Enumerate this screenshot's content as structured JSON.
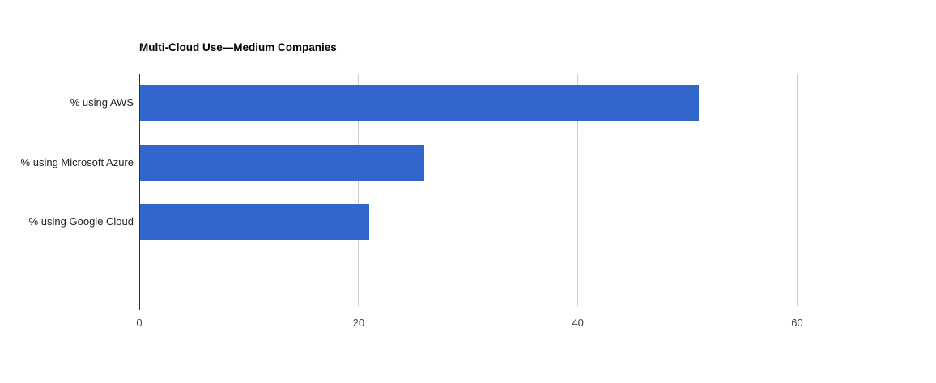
{
  "chart_data": {
    "type": "bar",
    "orientation": "horizontal",
    "title": "Multi-Cloud Use—Medium Companies",
    "categories": [
      "% using AWS",
      "% using Microsoft Azure",
      "% using Google Cloud"
    ],
    "values": [
      51,
      26,
      21
    ],
    "x_ticks": [
      0,
      20,
      40,
      60
    ],
    "xlim": [
      0,
      60
    ],
    "xlabel": "",
    "ylabel": "",
    "grid": true,
    "legend": "none",
    "colors": {
      "bar": "#3366cc",
      "gridline": "#cccccc",
      "baseline": "#333333",
      "tick_label": "#444444",
      "category_label": "#222222",
      "title": "#000000",
      "background": "#ffffff"
    }
  }
}
